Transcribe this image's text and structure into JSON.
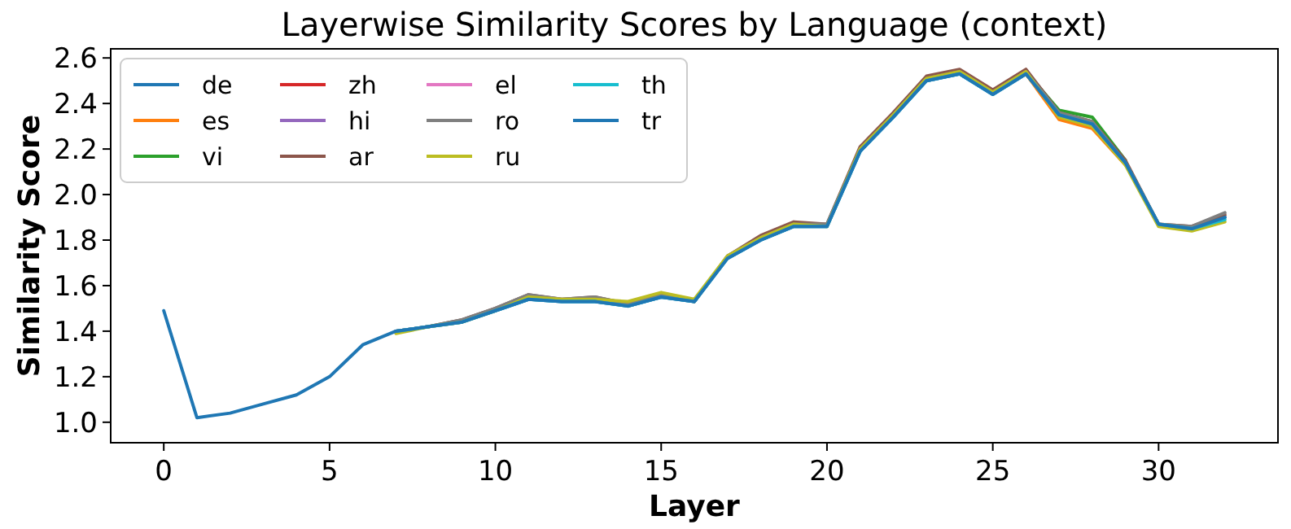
{
  "chart_data": {
    "type": "line",
    "title": "Layerwise Similarity Scores by Language (context)",
    "xlabel": "Layer",
    "ylabel": "Similarity Score",
    "x": [
      0,
      1,
      2,
      3,
      4,
      5,
      6,
      7,
      8,
      9,
      10,
      11,
      12,
      13,
      14,
      15,
      16,
      17,
      18,
      19,
      20,
      21,
      22,
      23,
      24,
      25,
      26,
      27,
      28,
      29,
      30,
      31,
      32
    ],
    "xlim": [
      -1.6,
      33.6
    ],
    "xticks": [
      0,
      5,
      10,
      15,
      20,
      25,
      30
    ],
    "ylim": [
      0.91,
      2.64
    ],
    "yticks": [
      {
        "value": 1,
        "label": "1.0"
      },
      1.2,
      1.4,
      1.6,
      1.8,
      {
        "value": 2,
        "label": "2.0"
      },
      2.2,
      2.4,
      2.6
    ],
    "grid": false,
    "legend": "top left",
    "marker": "none",
    "line_style": "solid",
    "series": [
      {
        "name": "de",
        "color": "#1f77b4",
        "values": [
          null,
          null,
          null,
          null,
          null,
          null,
          null,
          1.4,
          1.42,
          1.44,
          1.49,
          1.54,
          1.53,
          1.53,
          1.51,
          1.55,
          1.53,
          1.72,
          1.8,
          1.86,
          1.86,
          2.19,
          2.34,
          2.5,
          2.53,
          2.44,
          2.53,
          2.35,
          2.31,
          2.14,
          1.87,
          1.85,
          1.9
        ]
      },
      {
        "name": "es",
        "color": "#ff7f0e",
        "values": [
          null,
          null,
          null,
          null,
          null,
          null,
          null,
          null,
          null,
          null,
          null,
          null,
          null,
          null,
          null,
          null,
          null,
          null,
          null,
          null,
          null,
          null,
          null,
          null,
          null,
          null,
          2.53,
          2.33,
          2.29,
          2.13,
          null,
          null,
          null
        ]
      },
      {
        "name": "vi",
        "color": "#2ca02c",
        "values": [
          null,
          null,
          null,
          null,
          null,
          null,
          null,
          null,
          null,
          null,
          null,
          null,
          null,
          null,
          null,
          null,
          null,
          null,
          null,
          null,
          null,
          null,
          null,
          null,
          null,
          null,
          2.54,
          2.37,
          2.34,
          2.15,
          null,
          null,
          null
        ]
      },
      {
        "name": "zh",
        "color": "#d62728",
        "values": [
          null,
          null,
          null,
          null,
          null,
          null,
          null,
          null,
          null,
          null,
          null,
          null,
          null,
          null,
          null,
          null,
          null,
          null,
          null,
          null,
          null,
          null,
          null,
          null,
          null,
          null,
          null,
          null,
          null,
          null,
          null,
          null,
          null
        ]
      },
      {
        "name": "hi",
        "color": "#9467bd",
        "values": [
          null,
          null,
          null,
          null,
          null,
          null,
          null,
          null,
          null,
          null,
          null,
          null,
          null,
          null,
          null,
          null,
          null,
          null,
          null,
          null,
          null,
          null,
          null,
          null,
          null,
          null,
          null,
          null,
          null,
          null,
          null,
          null,
          null
        ]
      },
      {
        "name": "ar",
        "color": "#8c564b",
        "values": [
          null,
          null,
          null,
          null,
          null,
          null,
          null,
          1.4,
          1.42,
          1.45,
          1.5,
          1.56,
          1.54,
          1.55,
          1.52,
          1.56,
          1.53,
          1.73,
          1.82,
          1.88,
          1.87,
          2.21,
          2.36,
          2.52,
          2.55,
          2.46,
          2.55,
          2.36,
          2.32,
          2.15,
          1.87,
          1.86,
          1.91
        ]
      },
      {
        "name": "el",
        "color": "#e377c2",
        "values": [
          null,
          null,
          null,
          null,
          null,
          null,
          null,
          null,
          null,
          null,
          null,
          null,
          null,
          null,
          null,
          null,
          null,
          null,
          null,
          null,
          null,
          null,
          null,
          null,
          null,
          null,
          null,
          null,
          null,
          null,
          null,
          null,
          null
        ]
      },
      {
        "name": "ro",
        "color": "#7f7f7f",
        "values": [
          null,
          null,
          null,
          null,
          null,
          null,
          null,
          1.4,
          1.42,
          1.45,
          1.5,
          1.56,
          1.54,
          1.55,
          1.52,
          1.56,
          1.53,
          1.73,
          1.81,
          1.87,
          1.87,
          2.2,
          2.35,
          2.51,
          2.54,
          2.45,
          2.54,
          2.36,
          2.32,
          2.14,
          1.87,
          1.86,
          1.92
        ]
      },
      {
        "name": "ru",
        "color": "#bcbd22",
        "values": [
          null,
          null,
          null,
          null,
          null,
          null,
          null,
          1.39,
          1.42,
          1.44,
          1.49,
          1.55,
          1.54,
          1.54,
          1.53,
          1.57,
          1.54,
          1.73,
          1.81,
          1.87,
          1.86,
          2.2,
          2.35,
          2.51,
          2.54,
          2.45,
          2.54,
          2.34,
          2.3,
          2.13,
          1.86,
          1.84,
          1.88
        ]
      },
      {
        "name": "th",
        "color": "#17becf",
        "values": [
          null,
          null,
          null,
          null,
          null,
          null,
          null,
          1.4,
          1.42,
          1.44,
          1.49,
          1.54,
          1.53,
          1.53,
          1.51,
          1.55,
          1.53,
          1.72,
          1.8,
          1.86,
          1.86,
          2.19,
          2.34,
          2.5,
          2.53,
          2.44,
          2.53,
          2.35,
          2.31,
          2.14,
          1.87,
          1.85,
          1.89
        ]
      },
      {
        "name": "tr",
        "color": "#1f77b4",
        "values": [
          1.49,
          1.02,
          1.04,
          1.08,
          1.12,
          1.2,
          1.34,
          1.4,
          1.42,
          1.44,
          1.49,
          1.54,
          1.53,
          1.53,
          1.51,
          1.55,
          1.53,
          1.72,
          1.8,
          1.86,
          1.86,
          2.19,
          2.34,
          2.5,
          2.53,
          2.44,
          2.53,
          2.35,
          2.31,
          2.14,
          1.87,
          1.85,
          1.9
        ]
      }
    ]
  }
}
